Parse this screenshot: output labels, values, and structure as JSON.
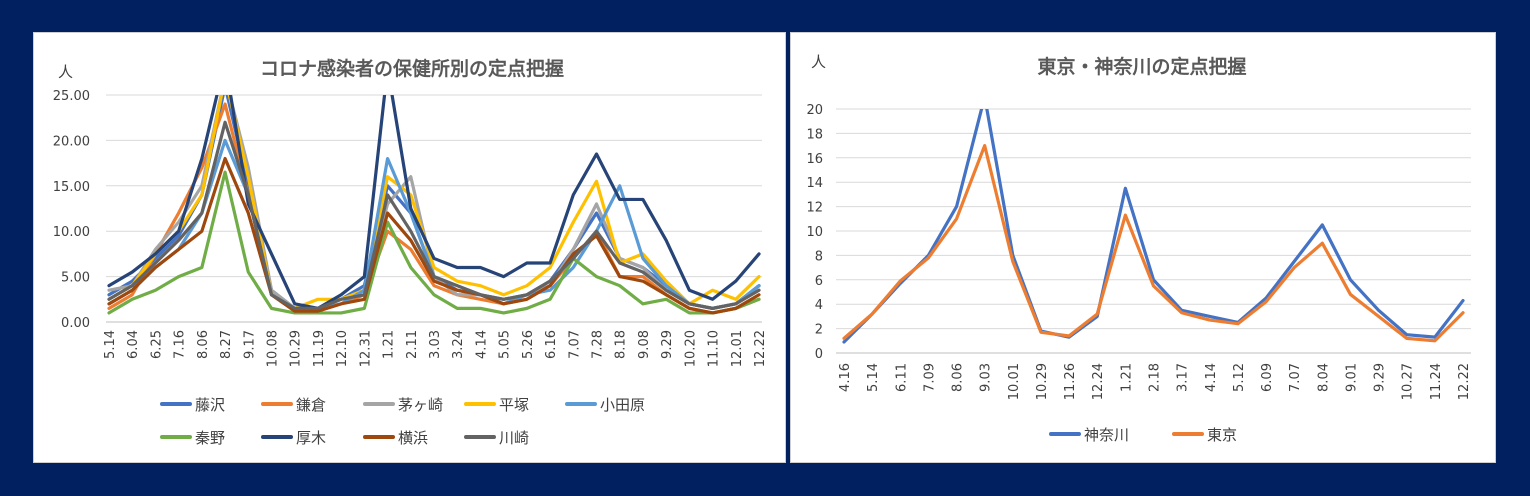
{
  "chart_data": [
    {
      "type": "line",
      "title": "コロナ感染者の保健所別の定点把握",
      "ylabel": "人",
      "ylim": [
        0,
        25
      ],
      "yticks": [
        "0.00",
        "5.00",
        "10.00",
        "15.00",
        "20.00",
        "25.00"
      ],
      "grid": true,
      "legend_position": "bottom",
      "categories": [
        "5.14",
        "6.04",
        "6.25",
        "7.16",
        "8.06",
        "8.27",
        "9.17",
        "10.08",
        "10.29",
        "11.19",
        "12.10",
        "12.31",
        "1.21",
        "2.11",
        "3.03",
        "3.24",
        "4.14",
        "5.05",
        "5.26",
        "6.16",
        "7.07",
        "7.28",
        "8.18",
        "9.08",
        "9.29",
        "10.20",
        "11.10",
        "12.01",
        "12.22"
      ],
      "series": [
        {
          "name": "藤沢",
          "color": "#4472C4",
          "values": [
            3.0,
            4.5,
            7.0,
            9.5,
            14.0,
            26.0,
            15.0,
            3.5,
            1.5,
            1.5,
            2.5,
            4.0,
            15.0,
            12.0,
            5.0,
            3.5,
            3.0,
            2.5,
            3.0,
            4.5,
            8.0,
            12.0,
            7.0,
            6.0,
            4.0,
            2.0,
            1.5,
            2.0,
            4.0
          ]
        },
        {
          "name": "鎌倉",
          "color": "#ED7D31",
          "values": [
            1.5,
            3.0,
            7.5,
            12.0,
            17.0,
            24.0,
            14.0,
            3.0,
            1.5,
            1.2,
            2.0,
            3.0,
            10.0,
            8.0,
            4.0,
            3.0,
            2.5,
            2.0,
            2.5,
            4.0,
            7.0,
            10.0,
            5.0,
            5.0,
            3.0,
            1.5,
            1.0,
            1.5,
            2.5
          ]
        },
        {
          "name": "茅ヶ崎",
          "color": "#A5A5A5",
          "values": [
            3.5,
            4.0,
            8.0,
            11.0,
            15.0,
            27.0,
            17.0,
            3.5,
            1.5,
            1.5,
            2.5,
            3.5,
            13.0,
            16.0,
            5.0,
            3.0,
            3.0,
            2.5,
            3.0,
            4.0,
            8.0,
            13.0,
            7.0,
            6.0,
            3.5,
            2.0,
            1.5,
            2.0,
            4.0
          ]
        },
        {
          "name": "平塚",
          "color": "#FFC000",
          "values": [
            2.5,
            4.0,
            7.5,
            10.0,
            14.0,
            27.0,
            16.0,
            3.0,
            1.5,
            2.5,
            2.5,
            3.5,
            16.0,
            14.0,
            6.0,
            4.5,
            4.0,
            3.0,
            4.0,
            6.0,
            11.0,
            15.5,
            6.5,
            7.5,
            4.5,
            2.0,
            3.5,
            2.5,
            5.0
          ]
        },
        {
          "name": "小田原",
          "color": "#5B9BD5",
          "values": [
            2.0,
            3.5,
            6.0,
            8.0,
            12.0,
            20.0,
            14.0,
            3.0,
            1.5,
            1.5,
            2.0,
            3.5,
            18.0,
            12.0,
            5.0,
            4.0,
            3.0,
            2.0,
            3.0,
            3.5,
            6.0,
            10.0,
            15.0,
            7.0,
            4.0,
            2.0,
            1.5,
            2.0,
            4.0
          ]
        },
        {
          "name": "秦野",
          "color": "#70AD47",
          "values": [
            1.0,
            2.5,
            3.5,
            5.0,
            6.0,
            16.5,
            5.5,
            1.5,
            1.0,
            1.0,
            1.0,
            1.5,
            11.0,
            6.0,
            3.0,
            1.5,
            1.5,
            1.0,
            1.5,
            2.5,
            7.0,
            5.0,
            4.0,
            2.0,
            2.5,
            1.0,
            1.0,
            1.5,
            2.5
          ]
        },
        {
          "name": "厚木",
          "color": "#264478",
          "values": [
            4.0,
            5.5,
            7.5,
            10.0,
            18.0,
            30.0,
            13.0,
            7.5,
            2.0,
            1.5,
            3.0,
            5.0,
            28.0,
            12.5,
            7.0,
            6.0,
            6.0,
            5.0,
            6.5,
            6.5,
            14.0,
            18.5,
            13.5,
            13.5,
            9.0,
            3.5,
            2.5,
            4.5,
            7.5
          ]
        },
        {
          "name": "横浜",
          "color": "#9E480E",
          "values": [
            2.0,
            3.5,
            6.0,
            8.0,
            10.0,
            18.0,
            12.0,
            3.0,
            1.2,
            1.2,
            2.0,
            2.5,
            12.0,
            9.0,
            4.5,
            3.5,
            3.0,
            2.0,
            2.5,
            4.0,
            7.5,
            9.5,
            5.0,
            4.5,
            3.0,
            1.5,
            1.0,
            1.5,
            3.0
          ]
        },
        {
          "name": "川崎",
          "color": "#636363",
          "values": [
            2.5,
            4.0,
            6.5,
            9.0,
            12.0,
            22.0,
            14.0,
            3.0,
            1.5,
            1.5,
            2.5,
            3.0,
            14.0,
            10.0,
            5.0,
            4.0,
            3.0,
            2.5,
            3.0,
            4.5,
            7.0,
            10.0,
            6.5,
            5.5,
            3.5,
            2.0,
            1.5,
            2.0,
            3.5
          ]
        }
      ]
    },
    {
      "type": "line",
      "title": "東京・神奈川の定点把握",
      "ylabel": "人",
      "ylim": [
        0,
        20
      ],
      "yticks": [
        "0",
        "2",
        "4",
        "6",
        "8",
        "10",
        "12",
        "14",
        "16",
        "18",
        "20"
      ],
      "grid": true,
      "legend_position": "bottom",
      "categories": [
        "4.16",
        "5.14",
        "6.11",
        "7.09",
        "8.06",
        "9.03",
        "10.01",
        "10.29",
        "11.26",
        "12.24",
        "1.21",
        "2.18",
        "3.17",
        "4.14",
        "5.12",
        "6.09",
        "7.07",
        "8.04",
        "9.01",
        "9.29",
        "10.27",
        "11.24",
        "12.22"
      ],
      "series": [
        {
          "name": "神奈川",
          "color": "#4472C4",
          "values": [
            0.9,
            3.2,
            5.7,
            8.0,
            12.0,
            21.0,
            8.0,
            1.8,
            1.3,
            3.0,
            13.5,
            6.0,
            3.5,
            3.0,
            2.5,
            4.5,
            7.5,
            10.5,
            6.0,
            3.5,
            1.5,
            1.3,
            4.3
          ]
        },
        {
          "name": "東京",
          "color": "#ED7D31",
          "values": [
            1.2,
            3.2,
            5.9,
            7.8,
            11.0,
            17.0,
            7.5,
            1.7,
            1.4,
            3.2,
            11.3,
            5.5,
            3.3,
            2.7,
            2.4,
            4.2,
            7.0,
            9.0,
            4.8,
            3.0,
            1.2,
            1.0,
            3.3
          ]
        }
      ]
    }
  ]
}
